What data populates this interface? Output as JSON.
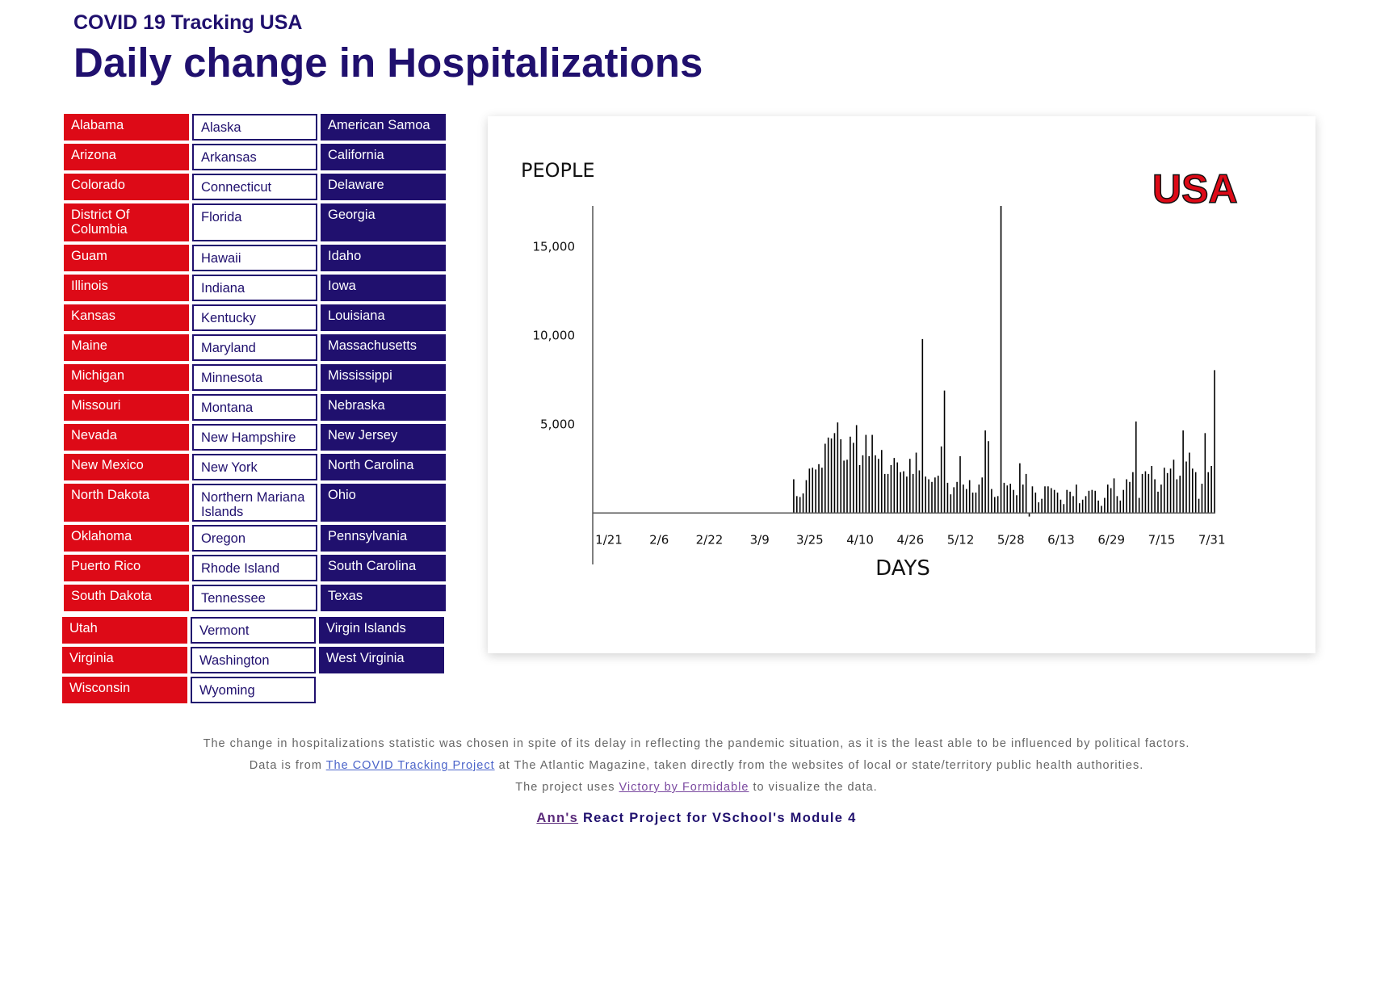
{
  "header": {
    "subtitle": "COVID 19 Tracking USA",
    "title": "Daily change in Hospitalizations"
  },
  "states": {
    "red": [
      {
        "label": "Alabama"
      },
      {
        "label": "Arizona"
      },
      {
        "label": "Colorado"
      },
      {
        "label": "District Of Columbia"
      },
      {
        "label": "Guam"
      },
      {
        "label": "Illinois"
      },
      {
        "label": "Kansas"
      },
      {
        "label": "Maine"
      },
      {
        "label": "Michigan"
      },
      {
        "label": "Missouri"
      },
      {
        "label": "Nevada"
      },
      {
        "label": "New Mexico"
      },
      {
        "label": "North Dakota"
      },
      {
        "label": "Oklahoma"
      },
      {
        "label": "Puerto Rico"
      },
      {
        "label": "South Dakota"
      },
      {
        "label": "Utah"
      },
      {
        "label": "Virginia"
      },
      {
        "label": "Wisconsin"
      }
    ],
    "white": [
      {
        "label": "Alaska"
      },
      {
        "label": "Arkansas"
      },
      {
        "label": "Connecticut"
      },
      {
        "label": "Florida"
      },
      {
        "label": "Hawaii"
      },
      {
        "label": "Indiana"
      },
      {
        "label": "Kentucky"
      },
      {
        "label": "Maryland"
      },
      {
        "label": "Minnesota"
      },
      {
        "label": "Montana"
      },
      {
        "label": "New Hampshire"
      },
      {
        "label": "New York"
      },
      {
        "label": "Northern Mariana Islands"
      },
      {
        "label": "Oregon"
      },
      {
        "label": "Rhode Island"
      },
      {
        "label": "Tennessee"
      },
      {
        "label": "Vermont"
      },
      {
        "label": "Washington"
      },
      {
        "label": "Wyoming"
      }
    ],
    "purple": [
      {
        "label": "American Samoa"
      },
      {
        "label": "California"
      },
      {
        "label": "Delaware"
      },
      {
        "label": "Georgia"
      },
      {
        "label": "Idaho"
      },
      {
        "label": "Iowa"
      },
      {
        "label": "Louisiana"
      },
      {
        "label": "Massachusetts"
      },
      {
        "label": "Mississippi"
      },
      {
        "label": "Nebraska"
      },
      {
        "label": "New Jersey"
      },
      {
        "label": "North Carolina"
      },
      {
        "label": "Ohio"
      },
      {
        "label": "Pennsylvania"
      },
      {
        "label": "South Carolina"
      },
      {
        "label": "Texas"
      },
      {
        "label": "Virgin Islands"
      },
      {
        "label": "West Virginia"
      }
    ]
  },
  "colors": {
    "red": "#dd0a17",
    "purple": "#20106e",
    "bar": "#000000"
  },
  "chart_data": {
    "type": "bar",
    "title": "USA",
    "xlabel": "DAYS",
    "ylabel": "PEOPLE",
    "yticks": [
      {
        "value": 5000,
        "label": "5,000"
      },
      {
        "value": 10000,
        "label": "10,000"
      },
      {
        "value": 15000,
        "label": "15,000"
      }
    ],
    "xticks": [
      {
        "index": 0,
        "label": "1/21"
      },
      {
        "index": 16,
        "label": "2/6"
      },
      {
        "index": 32,
        "label": "2/22"
      },
      {
        "index": 48,
        "label": "3/9"
      },
      {
        "index": 64,
        "label": "3/25"
      },
      {
        "index": 80,
        "label": "4/10"
      },
      {
        "index": 96,
        "label": "4/26"
      },
      {
        "index": 112,
        "label": "5/12"
      },
      {
        "index": 128,
        "label": "5/28"
      },
      {
        "index": 144,
        "label": "6/13"
      },
      {
        "index": 160,
        "label": "6/29"
      },
      {
        "index": 176,
        "label": "7/15"
      },
      {
        "index": 192,
        "label": "7/31"
      }
    ],
    "ylim": [
      -2900,
      17300
    ],
    "first_date": "1/21",
    "values": [
      0,
      0,
      0,
      0,
      0,
      0,
      0,
      0,
      0,
      0,
      0,
      0,
      0,
      0,
      0,
      0,
      0,
      0,
      0,
      0,
      0,
      0,
      0,
      0,
      0,
      0,
      0,
      0,
      0,
      0,
      0,
      0,
      0,
      0,
      0,
      0,
      0,
      0,
      0,
      0,
      0,
      0,
      0,
      0,
      0,
      0,
      0,
      0,
      0,
      0,
      0,
      0,
      0,
      0,
      0,
      0,
      0,
      0,
      0,
      0,
      0,
      0,
      0,
      0,
      1900,
      950,
      900,
      1100,
      1850,
      2500,
      2550,
      2450,
      2750,
      2550,
      3900,
      4250,
      4200,
      4500,
      5100,
      4150,
      2950,
      3000,
      4300,
      3950,
      4950,
      2700,
      3250,
      4400,
      3200,
      4400,
      3250,
      3050,
      3550,
      2200,
      2200,
      2700,
      3100,
      2850,
      2300,
      2350,
      2050,
      3050,
      2200,
      3400,
      2400,
      9800,
      2050,
      1900,
      1750,
      2000,
      2100,
      3750,
      6900,
      1700,
      1050,
      1450,
      1750,
      3200,
      1600,
      1350,
      1850,
      1150,
      1150,
      1600,
      2000,
      4650,
      4050,
      1350,
      900,
      950,
      17300,
      1700,
      1550,
      1650,
      1300,
      1000,
      2800,
      1600,
      2200,
      -200,
      1500,
      1150,
      600,
      800,
      1500,
      1500,
      1400,
      1300,
      1150,
      750,
      500,
      1300,
      1200,
      950,
      1600,
      550,
      750,
      950,
      1250,
      1300,
      1250,
      700,
      400,
      850,
      1600,
      1400,
      1950,
      950,
      700,
      1300,
      1900,
      1750,
      2300,
      5150,
      850,
      2200,
      2350,
      2200,
      2650,
      1900,
      1200,
      1600,
      2550,
      2250,
      2500,
      3000,
      1900,
      2100,
      4650,
      2900,
      3400,
      2500,
      2300,
      800,
      1650,
      4500,
      2300,
      2650,
      8050
    ]
  },
  "footer": {
    "line1": "The change in hospitalizations statistic was chosen in spite of its delay in reflecting the pandemic situation, as it is the least able to be influenced by political factors.",
    "line2_pre": "Data is from ",
    "line2_link": "The COVID Tracking Project",
    "line2_post": " at The Atlantic Magazine, taken directly from the websites of local or state/territory public health authorities.",
    "line3_pre": "The project uses ",
    "line3_link": "Victory by Formidable",
    "line3_post": " to visualize the data.",
    "credit_link": "Ann's",
    "credit_text": " React Project for VSchool's Module 4"
  }
}
